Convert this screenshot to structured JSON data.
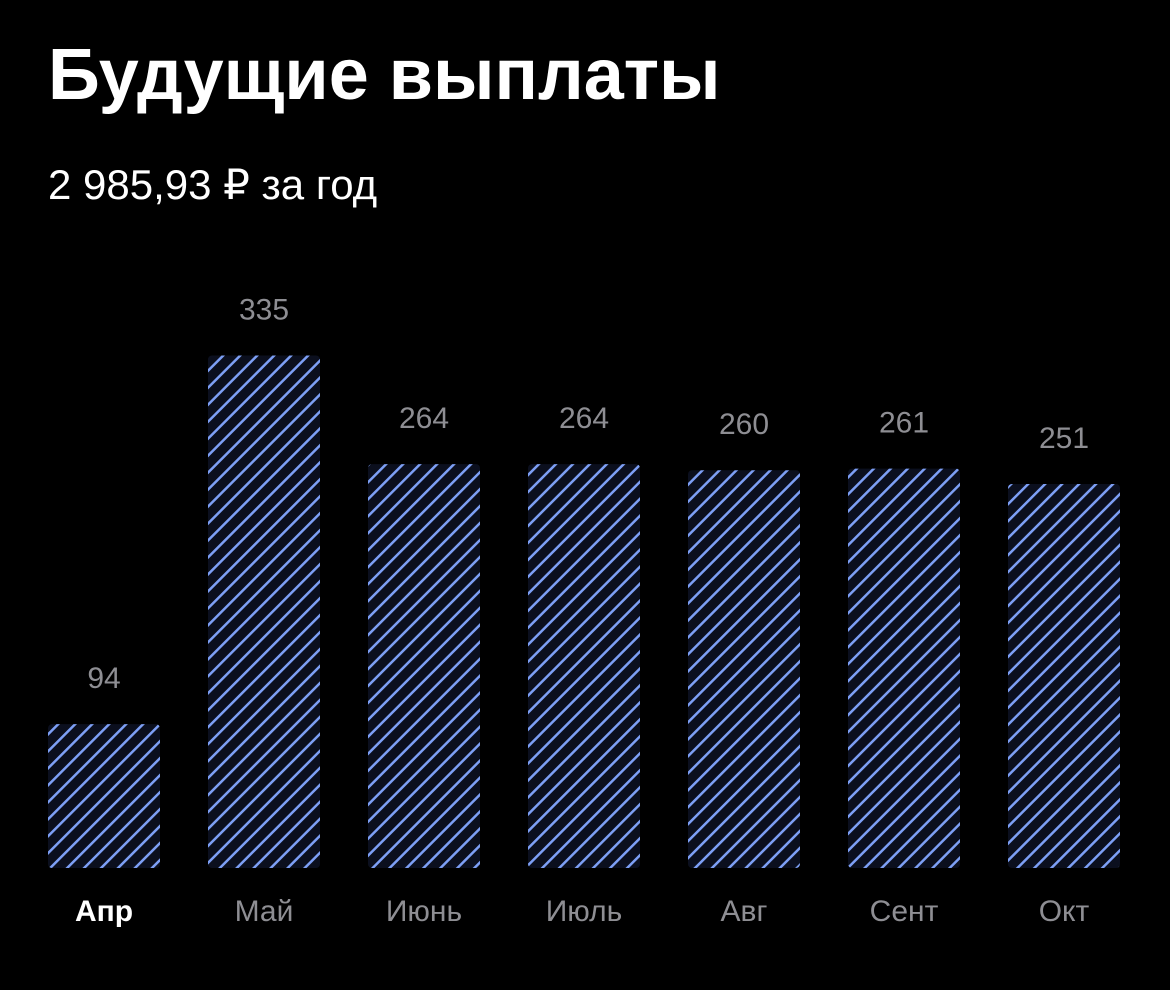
{
  "chart_data": {
    "type": "bar",
    "title": "Будущие выплаты",
    "subtitle": "2 985,93 ₽ за год",
    "categories": [
      "Апр",
      "Май",
      "Июнь",
      "Июль",
      "Авг",
      "Сент",
      "Окт"
    ],
    "values": [
      94,
      335,
      264,
      264,
      260,
      261,
      251
    ],
    "color": "#7d9ff5"
  }
}
